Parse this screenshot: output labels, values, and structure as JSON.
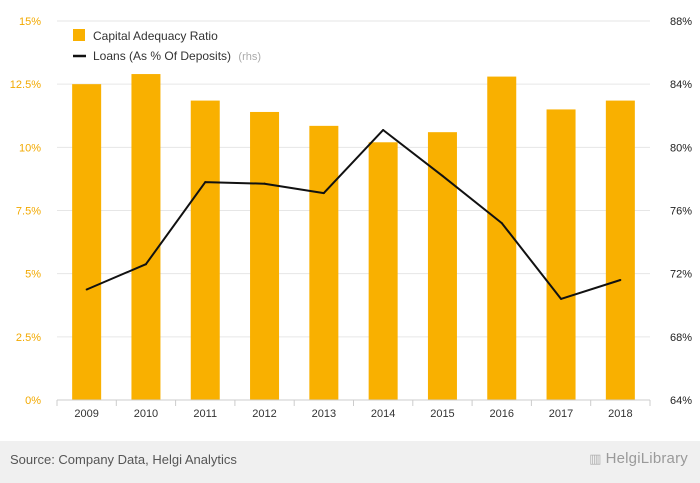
{
  "chart_data": {
    "type": "bar+line",
    "categories": [
      "2009",
      "2010",
      "2011",
      "2012",
      "2013",
      "2014",
      "2015",
      "2016",
      "2017",
      "2018"
    ],
    "series": [
      {
        "name": "Capital Adequacy Ratio",
        "type": "bar",
        "axis": "left",
        "color": "#f9b000",
        "values": [
          12.5,
          12.9,
          11.85,
          11.4,
          10.85,
          10.2,
          10.6,
          12.8,
          11.5,
          11.85
        ]
      },
      {
        "name": "Loans (As % Of Deposits)",
        "axis_note": "(rhs)",
        "type": "line",
        "axis": "right",
        "color": "#111111",
        "values": [
          71.0,
          72.6,
          77.8,
          77.7,
          77.1,
          81.1,
          78.2,
          75.2,
          70.4,
          71.6
        ]
      }
    ],
    "y_left": {
      "ticks": [
        "0%",
        "2.5%",
        "5%",
        "7.5%",
        "10%",
        "12.5%",
        "15%"
      ],
      "min": 0,
      "max": 15
    },
    "y_right": {
      "ticks": [
        "64%",
        "68%",
        "72%",
        "76%",
        "80%",
        "84%",
        "88%"
      ],
      "min": 64,
      "max": 88
    },
    "grid": "horizontal",
    "legend_position": "top-left"
  },
  "footer": {
    "source": "Source: Company Data, Helgi Analytics",
    "brand": "HelgiLibrary",
    "brand_icon": "building-icon"
  }
}
